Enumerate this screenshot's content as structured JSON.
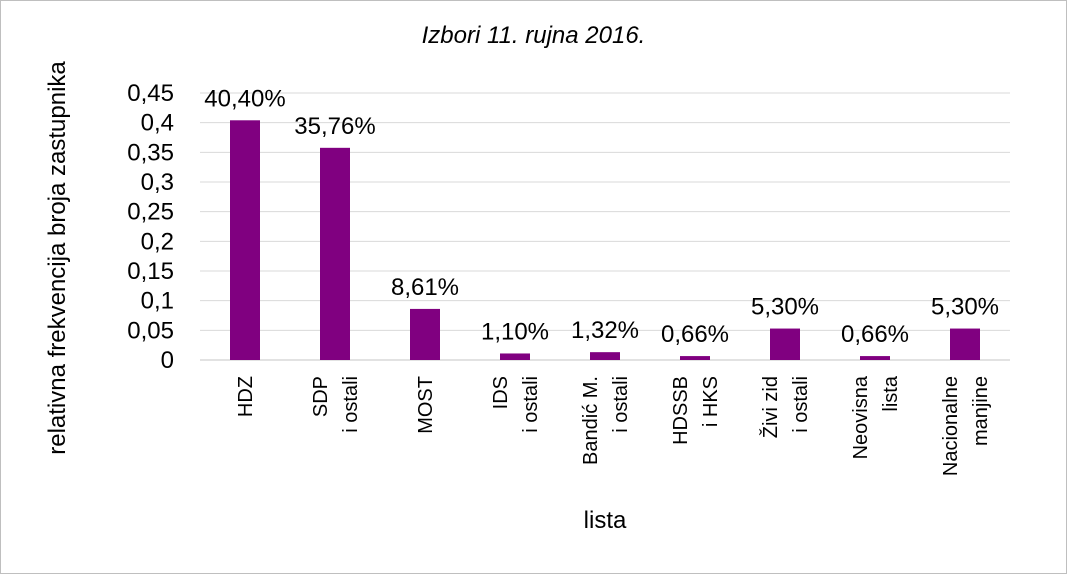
{
  "chart_data": {
    "type": "bar",
    "title": "Izbori 11. rujna 2016.",
    "xlabel": "lista",
    "ylabel": "relativna frekvencija broja zastupnika",
    "ylim": [
      0,
      0.45
    ],
    "y_ticks": [
      0,
      0.05,
      0.1,
      0.15,
      0.2,
      0.25,
      0.3,
      0.35,
      0.4,
      0.45
    ],
    "y_tick_labels": [
      "0",
      "0,05",
      "0,1",
      "0,15",
      "0,2",
      "0,25",
      "0,3",
      "0,35",
      "0,4",
      "0,45"
    ],
    "grid": true,
    "bar_color": "#800080",
    "grid_color": "#d9d9d9",
    "categories": [
      [
        "HDZ"
      ],
      [
        "SDP",
        "i ostali"
      ],
      [
        "MOST"
      ],
      [
        "IDS",
        "i ostali"
      ],
      [
        "Bandić M.",
        "i ostali"
      ],
      [
        "HDSSB",
        "i HKS"
      ],
      [
        "Živi zid",
        "i ostali"
      ],
      [
        "Neovisna",
        "lista"
      ],
      [
        "Nacionalne",
        "manjine"
      ]
    ],
    "values": [
      0.404,
      0.3576,
      0.0861,
      0.011,
      0.0132,
      0.0066,
      0.053,
      0.0066,
      0.053
    ],
    "data_labels": [
      "40,40%",
      "35,76%",
      "8,61%",
      "1,10%",
      "1,32%",
      "0,66%",
      "5,30%",
      "0,66%",
      "5,30%"
    ]
  }
}
